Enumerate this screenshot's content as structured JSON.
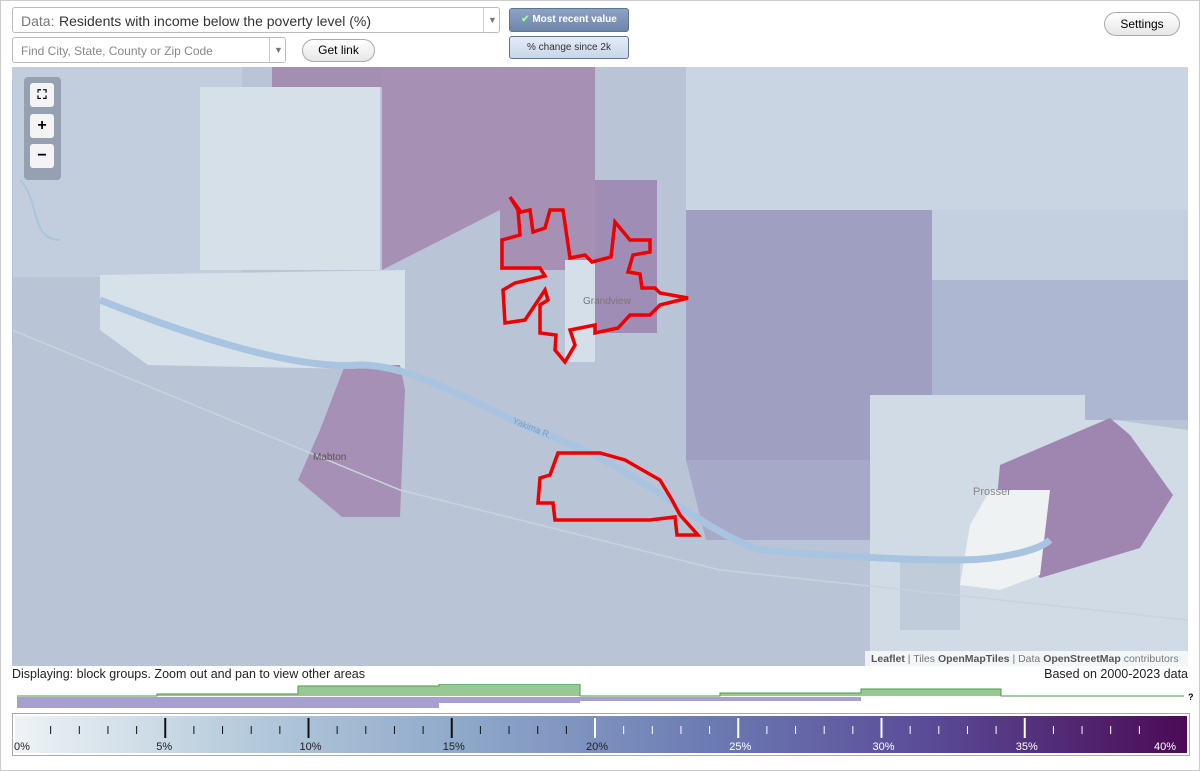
{
  "controls": {
    "data_label": "Data:",
    "data_value": "Residents with income below the poverty level (%)",
    "search_placeholder": "Find City, State, County or Zip Code",
    "get_link": "Get link",
    "most_recent": "Most recent value",
    "change_since": "% change since 2k",
    "settings": "Settings"
  },
  "map": {
    "places": [
      "Grandview",
      "Mabton",
      "Prosser",
      "Yakima R."
    ],
    "attribution": [
      "Leaflet",
      "|",
      "Tiles",
      "OpenMapTiles",
      "| Data",
      "OpenStreetMap",
      "contributors"
    ]
  },
  "footer": {
    "displaying": "Displaying: block groups. Zoom out and pan to view other areas",
    "based_on": "Based on 2000-2023 data",
    "help": "?"
  },
  "legend": {
    "labels": [
      "0%",
      "5%",
      "10%",
      "15%",
      "20%",
      "25%",
      "30%",
      "35%",
      "40%"
    ]
  }
}
